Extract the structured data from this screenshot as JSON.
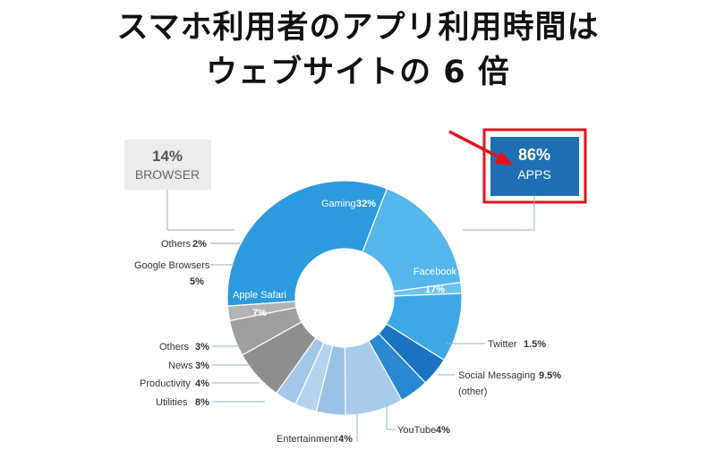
{
  "title": {
    "line1": "スマホ利用者のアプリ利用時間は",
    "line2": "ウェブサイトの 6 倍"
  },
  "callouts": {
    "browser": {
      "pct": "14%",
      "label": "BROWSER"
    },
    "apps": {
      "pct": "86%",
      "label": "APPS"
    }
  },
  "colors": {
    "apps_header": "#1e6fb3",
    "highlight_border": "#e1141b",
    "arrow": "#e1141b",
    "browser_box": "#ececec"
  },
  "chart_data": {
    "type": "pie",
    "donut": true,
    "slices": [
      {
        "name": "Gaming",
        "value": 32,
        "value_label": "32%",
        "group": "apps",
        "color": "#2d9ae0"
      },
      {
        "name": "Facebook",
        "value": 17,
        "value_label": "17%",
        "group": "apps",
        "color": "#55b6ec"
      },
      {
        "name": "Twitter",
        "value": 1.5,
        "value_label": "1.5%",
        "group": "apps",
        "color": "#6fc1ee"
      },
      {
        "name": "Social Messaging",
        "value": 9.5,
        "value_label": "9.5%",
        "note": "(other)",
        "group": "apps",
        "color": "#3ea8e6"
      },
      {
        "name": "YouTube",
        "value": 4,
        "value_label": "4%",
        "group": "apps",
        "color": "#1c72c2"
      },
      {
        "name": "Entertainment",
        "value": 4,
        "value_label": "4%",
        "group": "apps",
        "color": "#2a88d2"
      },
      {
        "name": "Utilities",
        "value": 8,
        "value_label": "8%",
        "group": "apps",
        "color": "#a9cbeb"
      },
      {
        "name": "Productivity",
        "value": 4,
        "value_label": "4%",
        "group": "apps",
        "color": "#9bc2e6"
      },
      {
        "name": "News",
        "value": 3,
        "value_label": "3%",
        "group": "apps",
        "color": "#b6d3ee"
      },
      {
        "name": "Others",
        "value": 3,
        "value_label": "3%",
        "group": "apps",
        "color": "#a5c7e9"
      },
      {
        "name": "Apple Safari",
        "value": 7,
        "value_label": "7%",
        "group": "browser",
        "color": "#8e8e8e"
      },
      {
        "name": "Google Browsers",
        "value": 5,
        "value_label": "5%",
        "group": "browser",
        "color": "#9f9f9f"
      },
      {
        "name": "Others",
        "value": 2,
        "value_label": "2%",
        "group": "browser",
        "color": "#b3b3b3"
      }
    ]
  }
}
